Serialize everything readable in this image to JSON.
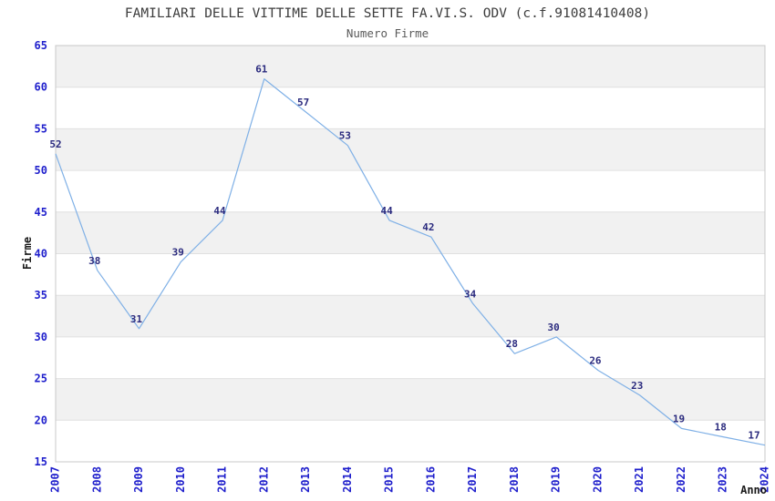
{
  "header": {
    "title": "FAMILIARI DELLE VITTIME DELLE SETTE FA.VI.S. ODV (c.f.91081410408)",
    "subtitle": "Numero Firme"
  },
  "chart_data": {
    "type": "line",
    "title": "FAMILIARI DELLE VITTIME DELLE SETTE FA.VI.S. ODV (c.f.91081410408)",
    "subtitle": "Numero Firme",
    "xlabel": "Anno",
    "ylabel": "Firme",
    "categories": [
      "2007",
      "2008",
      "2009",
      "2010",
      "2011",
      "2012",
      "2013",
      "2014",
      "2015",
      "2016",
      "2017",
      "2018",
      "2019",
      "2020",
      "2021",
      "2022",
      "2023",
      "2024"
    ],
    "values": [
      52,
      38,
      31,
      39,
      44,
      61,
      57,
      53,
      44,
      42,
      34,
      28,
      30,
      26,
      23,
      19,
      18,
      17
    ],
    "ylim": [
      15,
      65
    ],
    "ytick_step": 5,
    "ytick_labels": [
      "15",
      "20",
      "25",
      "30",
      "35",
      "40",
      "45",
      "50",
      "55",
      "60",
      "65"
    ],
    "grid": "horizontal-bands",
    "legend": "none",
    "data_labels_visible": true,
    "colors": {
      "line": "#7fb0e6",
      "data_label": "#2a2a7e",
      "tick_label": "#1f1fcc",
      "band_fill": "#f1f1f1",
      "grid_line": "#e0e0e0",
      "plot_border": "#c8c8c8",
      "title_text": "#3d3d3d",
      "subtitle_text": "#5a5a5a",
      "axis_label_text": "#1a1a1a",
      "background": "#ffffff"
    }
  }
}
